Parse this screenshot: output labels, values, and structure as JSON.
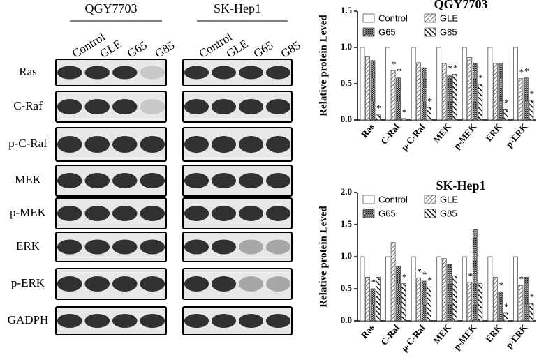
{
  "blots": {
    "panels": [
      {
        "title": "QGY7703",
        "lanes": [
          "Control",
          "GLE",
          "G65",
          "G85"
        ]
      },
      {
        "title": "SK-Hep1",
        "lanes": [
          "Control",
          "GLE",
          "G65",
          "G85"
        ]
      }
    ],
    "rows": [
      "Ras",
      "C-Raf",
      "p-C-Raf",
      "MEK",
      "p-MEK",
      "ERK",
      "p-ERK",
      "GADPH"
    ]
  },
  "chart_data": [
    {
      "type": "bar",
      "title": "QGY7703",
      "y_label": "Relative protein Leved",
      "categories": [
        "Ras",
        "C-Raf",
        "p-C-Raf",
        "MEK",
        "p-MEK",
        "ERK",
        "p-ERK"
      ],
      "ylim": [
        0,
        1.5
      ],
      "yticks": [
        {
          "value": 0,
          "label": "0.0"
        },
        {
          "value": 0.5,
          "label": "0.5"
        },
        {
          "value": 1,
          "label": "1.0"
        },
        {
          "value": 1.5,
          "label": "1.5"
        }
      ],
      "series": [
        {
          "name": "Control",
          "color": "#ffffff",
          "pattern": "none",
          "values": [
            1.0,
            1.0,
            1.0,
            1.0,
            1.0,
            1.0,
            1.0
          ],
          "significance": [
            null,
            null,
            null,
            null,
            null,
            null,
            null
          ]
        },
        {
          "name": "GLE",
          "color": "#444444",
          "pattern": "diagonal",
          "values": [
            0.87,
            0.68,
            0.79,
            0.78,
            0.86,
            0.78,
            0.57
          ],
          "significance": [
            null,
            "*",
            null,
            null,
            null,
            null,
            "*"
          ]
        },
        {
          "name": "G65",
          "color": "#333333",
          "pattern": "checker",
          "values": [
            0.82,
            0.58,
            0.72,
            0.62,
            0.78,
            0.78,
            0.58
          ],
          "significance": [
            null,
            "*",
            null,
            "*",
            null,
            null,
            "*"
          ]
        },
        {
          "name": "G85",
          "color": "#111111",
          "pattern": "thick-diagonal",
          "values": [
            0.07,
            0.02,
            0.17,
            0.63,
            0.49,
            0.15,
            0.27
          ],
          "significance": [
            "*",
            "*",
            "*",
            "*",
            "*",
            "*",
            "*"
          ]
        }
      ]
    },
    {
      "type": "bar",
      "title": "SK-Hep1",
      "y_label": "Relative protein Leved",
      "categories": [
        "Ras",
        "C-Raf",
        "p-C-Raf",
        "MEK",
        "p-MEK",
        "ERK",
        "p-ERK"
      ],
      "ylim": [
        0,
        2
      ],
      "yticks": [
        {
          "value": 0,
          "label": "0.0"
        },
        {
          "value": 0.5,
          "label": "0.5"
        },
        {
          "value": 1,
          "label": "1.0"
        },
        {
          "value": 1.5,
          "label": "1.5"
        },
        {
          "value": 2,
          "label": "2.0"
        }
      ],
      "series": [
        {
          "name": "Control",
          "color": "#ffffff",
          "pattern": "none",
          "values": [
            1.0,
            1.0,
            1.0,
            1.0,
            1.0,
            1.0,
            1.0
          ],
          "significance": [
            null,
            null,
            null,
            null,
            null,
            null,
            null
          ]
        },
        {
          "name": "GLE",
          "color": "#444444",
          "pattern": "diagonal",
          "values": [
            0.68,
            1.22,
            0.67,
            0.97,
            0.6,
            0.68,
            0.55
          ],
          "significance": [
            null,
            null,
            "*",
            null,
            "*",
            null,
            "*"
          ]
        },
        {
          "name": "G65",
          "color": "#333333",
          "pattern": "checker",
          "values": [
            0.5,
            0.85,
            0.62,
            0.88,
            1.42,
            0.45,
            0.68
          ],
          "significance": [
            "*",
            null,
            "*",
            null,
            null,
            "*",
            null
          ]
        },
        {
          "name": "G85",
          "color": "#111111",
          "pattern": "thick-diagonal",
          "values": [
            0.68,
            0.58,
            0.53,
            0.7,
            0.58,
            0.12,
            0.27
          ],
          "significance": [
            null,
            "*",
            "*",
            null,
            null,
            "*",
            "*"
          ]
        }
      ]
    }
  ]
}
